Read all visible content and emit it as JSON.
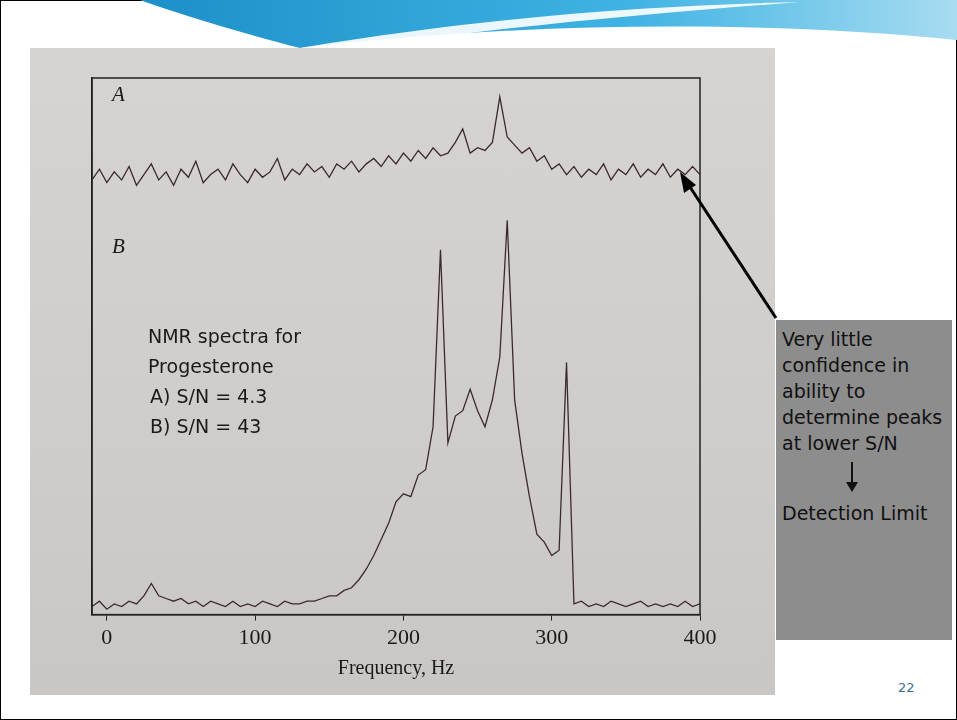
{
  "chart_data": {
    "type": "line",
    "x_label": "Frequency, Hz",
    "annotations": [
      "NMR spectra for Progesterone",
      "A) S/N = 4.3",
      "B) S/N = 43"
    ],
    "x": [
      -10,
      -5,
      0,
      5,
      10,
      15,
      20,
      25,
      30,
      35,
      40,
      45,
      50,
      55,
      60,
      65,
      70,
      75,
      80,
      85,
      90,
      95,
      100,
      105,
      110,
      115,
      120,
      125,
      130,
      135,
      140,
      145,
      150,
      155,
      160,
      165,
      170,
      175,
      180,
      185,
      190,
      195,
      200,
      205,
      210,
      215,
      220,
      225,
      230,
      235,
      240,
      245,
      250,
      255,
      260,
      265,
      270,
      275,
      280,
      285,
      290,
      295,
      300,
      305,
      310,
      315,
      320,
      325,
      330,
      335,
      340,
      345,
      350,
      355,
      360,
      365,
      370,
      375,
      380,
      385,
      390,
      395,
      400
    ],
    "series": [
      {
        "name": "A",
        "color": "#3b2a2a",
        "values": [
          81,
          83,
          80.5,
          82.5,
          81,
          83.5,
          80,
          82,
          84,
          81,
          82.5,
          80,
          83,
          81.5,
          84.5,
          80.5,
          82,
          83,
          81,
          84,
          82,
          80.5,
          83,
          81.5,
          82.5,
          85,
          81,
          83,
          82,
          84,
          82.5,
          83.5,
          81.5,
          84,
          83,
          84.5,
          82.5,
          84,
          85,
          83.5,
          85.5,
          84,
          86,
          84.5,
          86.5,
          85,
          87,
          85.5,
          86,
          88,
          90.5,
          86,
          87,
          86.5,
          88,
          96.5,
          89,
          87.5,
          86,
          87,
          84.5,
          85.5,
          83,
          84,
          82,
          83.5,
          81.5,
          83,
          82,
          84,
          81,
          83,
          82,
          84,
          81.5,
          83,
          82,
          84,
          81.5,
          83,
          82,
          83.5,
          82
        ]
      },
      {
        "name": "B",
        "color": "#3b2a2a",
        "values": [
          1.5,
          2.5,
          1,
          2,
          1.5,
          2.5,
          2,
          3.5,
          5.8,
          3.5,
          3,
          2.5,
          3,
          2,
          2.5,
          1.5,
          2.5,
          2,
          1.5,
          2.5,
          1.5,
          2,
          1.5,
          2.5,
          2,
          1.5,
          2.5,
          2,
          2,
          2.5,
          2.5,
          3,
          3.5,
          3.5,
          4.5,
          5,
          6.5,
          8.5,
          11,
          14,
          17,
          21,
          22.5,
          22,
          26,
          27,
          35,
          68,
          32,
          37,
          38,
          42,
          38,
          35,
          40,
          48,
          73.5,
          40,
          30,
          22,
          15,
          13.5,
          11,
          12,
          47,
          2,
          2.5,
          1.5,
          2,
          1.5,
          2.5,
          2,
          1.5,
          2,
          2.5,
          1.5,
          2,
          1.5,
          2,
          1.5,
          2.5,
          1.5,
          2
        ]
      }
    ],
    "xlim": [
      -10,
      400
    ],
    "xticks": [
      0,
      100,
      200,
      300,
      400
    ],
    "ylim": [
      0,
      100
    ],
    "grid": false,
    "tick_labels": "x"
  },
  "callout": {
    "text": "Very little confidence in ability to determine peaks at lower S/N",
    "conclusion": "Detection Limit"
  },
  "slide_number": 22
}
